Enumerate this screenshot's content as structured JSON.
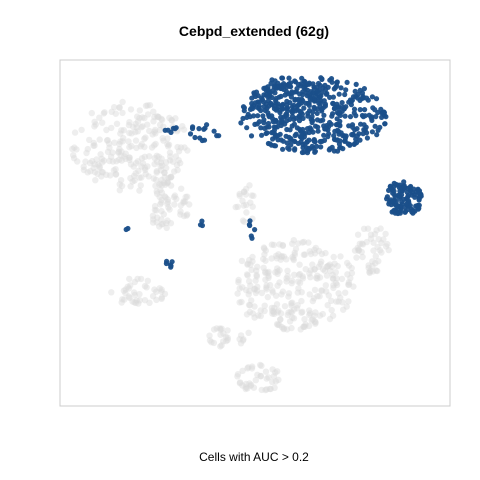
{
  "chart_data": {
    "type": "scatter",
    "title": "Cebpd_extended (62g)",
    "xlabel": "Cells with AUC > 0.2",
    "ylabel": "",
    "grid": false,
    "legend": "none",
    "xlim": [
      0,
      100
    ],
    "ylim": [
      0,
      100
    ],
    "colors": {
      "highlighted": "#1a4f8a",
      "background": "#d9d9d9",
      "frame": "#cccccc"
    },
    "series": [
      {
        "color": "#d9d9d9",
        "clusters": [
          {
            "cx": 18,
            "cy": 75,
            "rx": 15,
            "ry": 13,
            "n": 230
          },
          {
            "cx": 28,
            "cy": 58,
            "rx": 6,
            "ry": 7,
            "n": 60
          },
          {
            "cx": 60,
            "cy": 35,
            "rx": 16,
            "ry": 13,
            "n": 260
          },
          {
            "cx": 80,
            "cy": 45,
            "rx": 5,
            "ry": 7,
            "n": 45
          },
          {
            "cx": 20,
            "cy": 33,
            "rx": 7,
            "ry": 4,
            "n": 40
          },
          {
            "cx": 43,
            "cy": 20,
            "rx": 6,
            "ry": 3,
            "n": 25
          },
          {
            "cx": 51,
            "cy": 8,
            "rx": 6,
            "ry": 4,
            "n": 40
          },
          {
            "cx": 48,
            "cy": 58,
            "rx": 3,
            "ry": 6,
            "n": 20
          }
        ]
      },
      {
        "color": "#1a4f8a",
        "clusters": [
          {
            "cx": 65,
            "cy": 84,
            "rx": 19,
            "ry": 11,
            "n": 420
          },
          {
            "cx": 59,
            "cy": 89,
            "rx": 10,
            "ry": 6,
            "n": 90
          },
          {
            "cx": 88,
            "cy": 60,
            "rx": 5,
            "ry": 5,
            "n": 110
          },
          {
            "cx": 37,
            "cy": 79,
            "rx": 4,
            "ry": 2.5,
            "n": 14
          },
          {
            "cx": 28,
            "cy": 80,
            "rx": 2,
            "ry": 1,
            "n": 6
          },
          {
            "cx": 49,
            "cy": 51,
            "rx": 1,
            "ry": 3,
            "n": 6
          },
          {
            "cx": 28,
            "cy": 41,
            "rx": 1.2,
            "ry": 1,
            "n": 6
          },
          {
            "cx": 36,
            "cy": 53,
            "rx": 1,
            "ry": 1,
            "n": 3
          },
          {
            "cx": 17,
            "cy": 51,
            "rx": 0.6,
            "ry": 0.6,
            "n": 2
          }
        ]
      }
    ]
  }
}
